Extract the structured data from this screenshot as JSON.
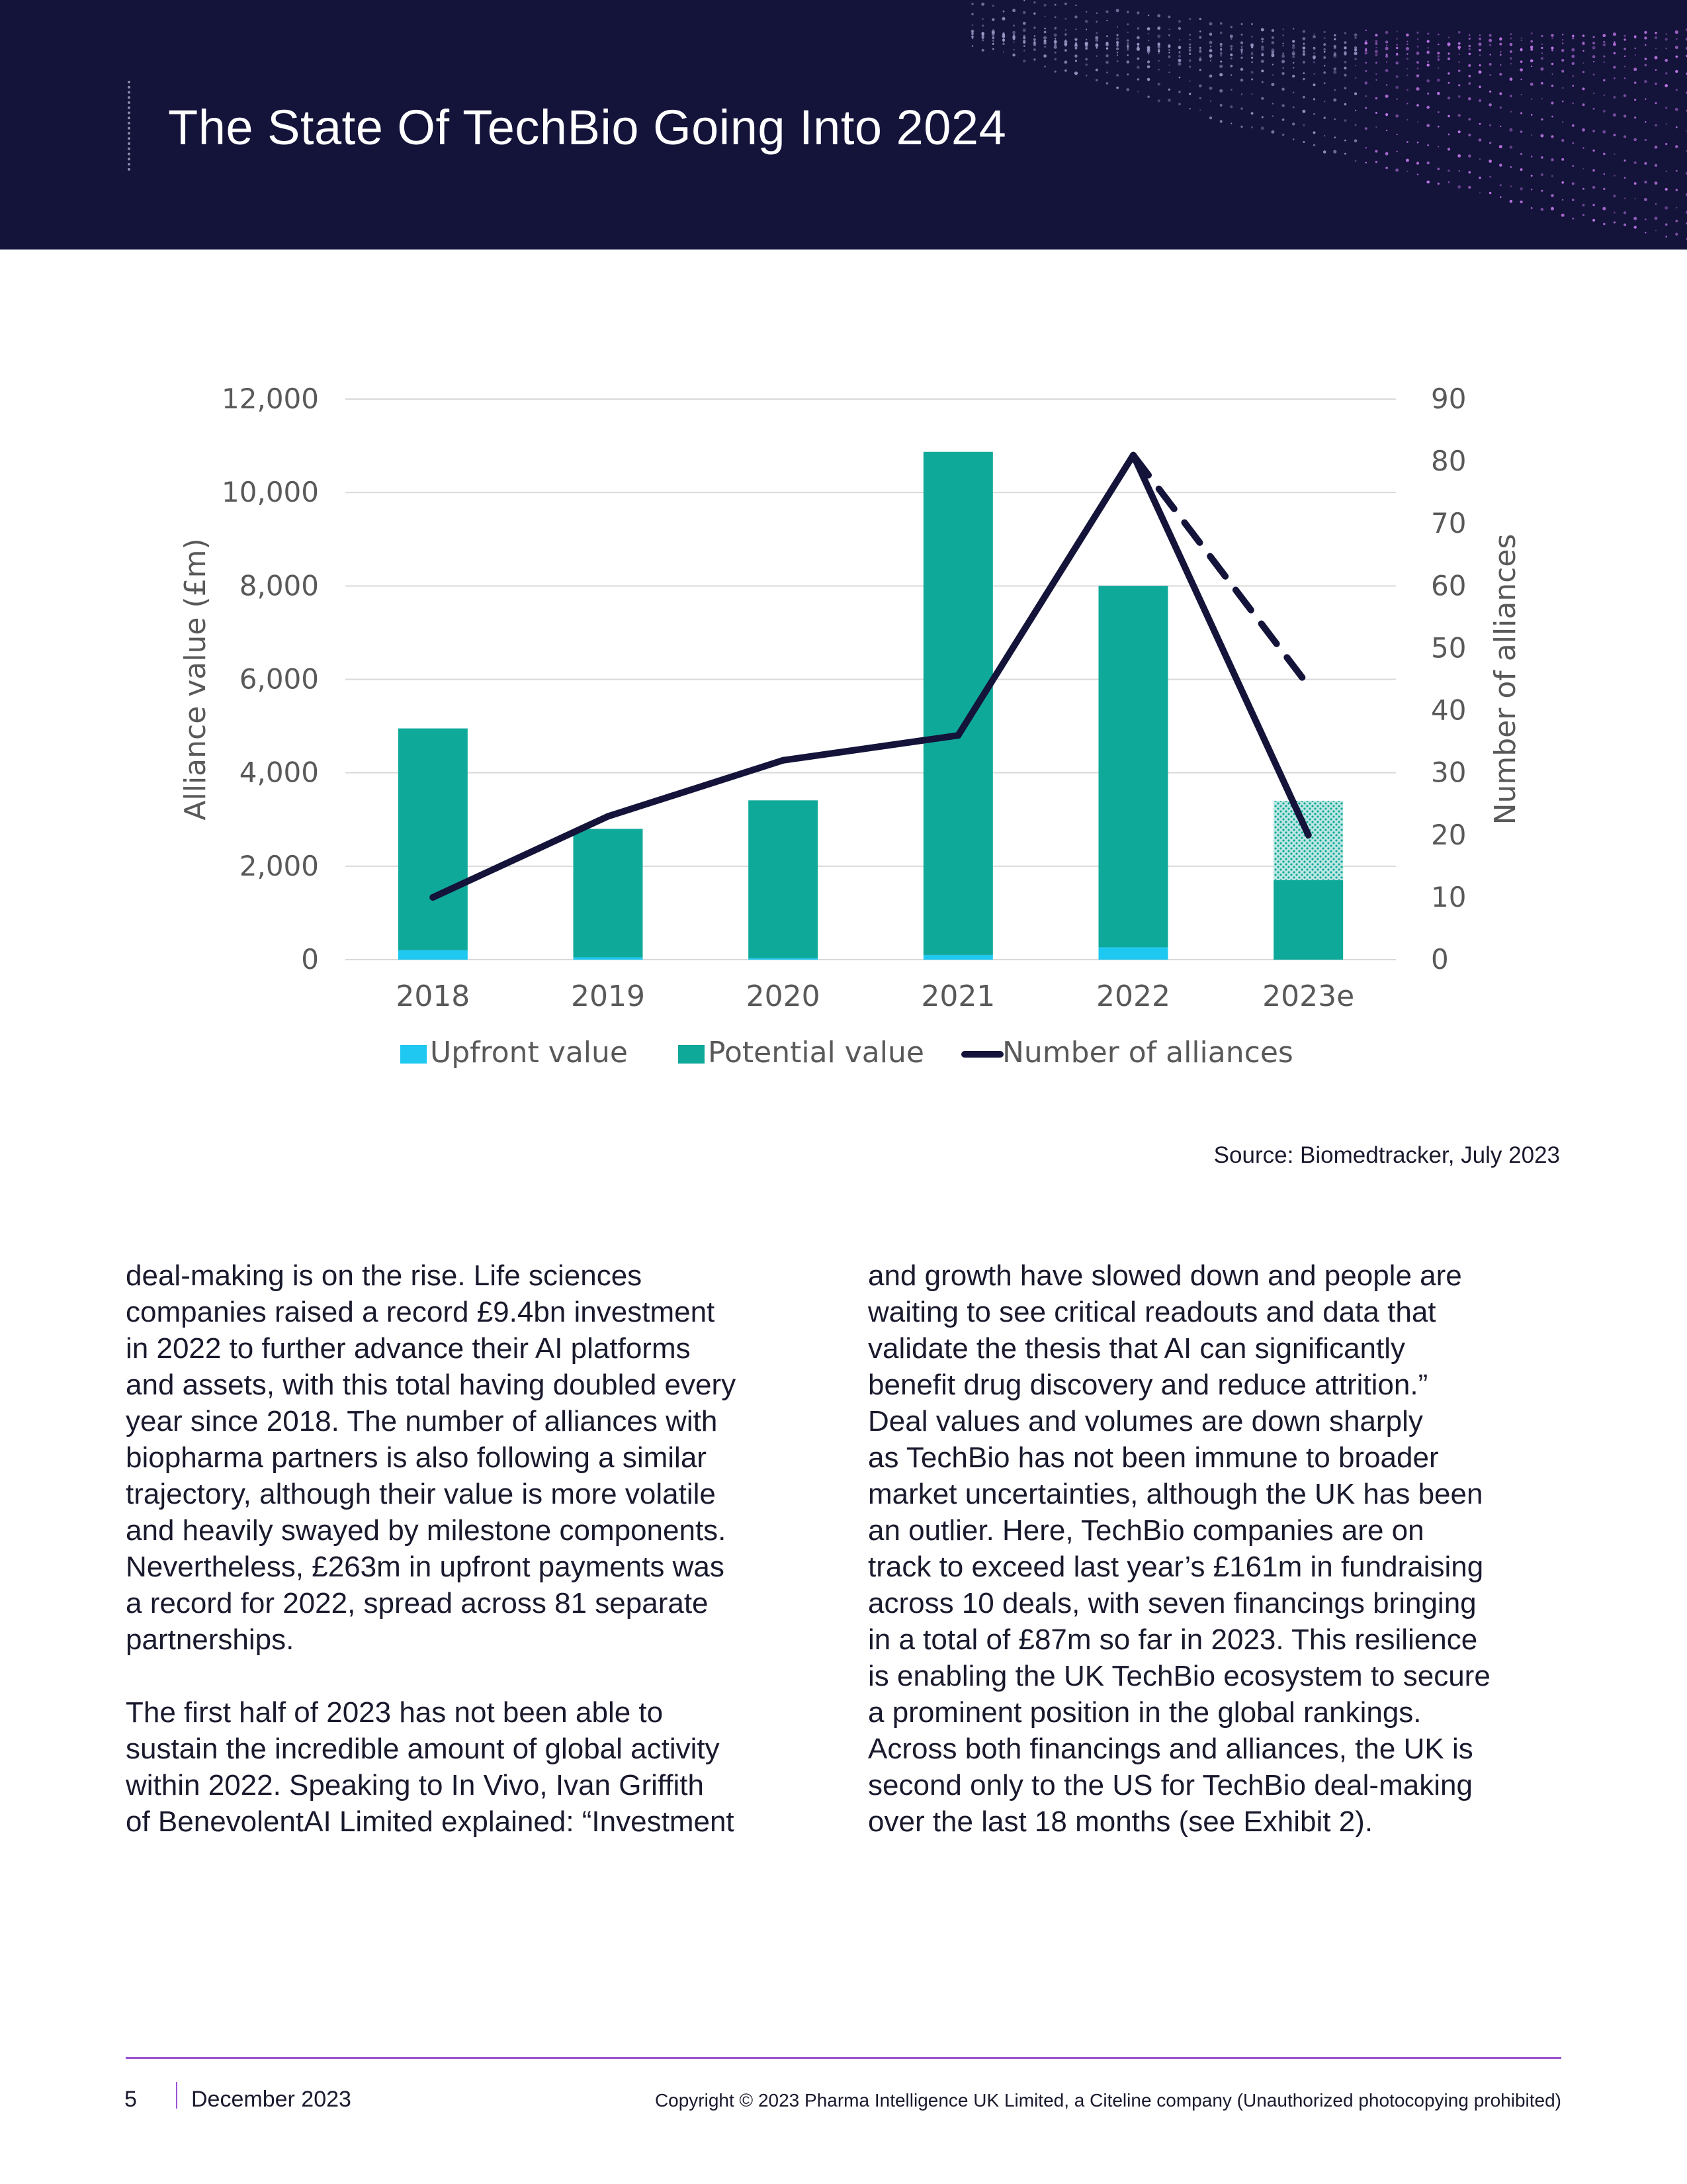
{
  "header": {
    "title": "The State Of TechBio Going Into 2024",
    "background_color": "#14133a"
  },
  "chart_data": {
    "type": "bar",
    "categories": [
      "2018",
      "2019",
      "2020",
      "2021",
      "2022",
      "2023e"
    ],
    "series": [
      {
        "name": "Upfront value",
        "kind": "bar",
        "axis": "left",
        "color": "#1ec8f0",
        "values": [
          200,
          50,
          30,
          100,
          263,
          0
        ]
      },
      {
        "name": "Potential value",
        "kind": "bar",
        "axis": "left",
        "color": "#0fa99a",
        "values": [
          4750,
          2750,
          3380,
          10770,
          7740,
          1700
        ],
        "extra_hatched_2023e": 1700
      },
      {
        "name": "Number of alliances",
        "kind": "line",
        "axis": "right",
        "color": "#14133a",
        "values": [
          10,
          23,
          32,
          36,
          81,
          20
        ],
        "dashed_projection": {
          "from": "2022",
          "to": "2023e",
          "values": [
            81,
            44
          ]
        }
      }
    ],
    "ylabel": "Alliance value (£m)",
    "ylabel_right": "Number of alliances",
    "ylim": [
      0,
      12000
    ],
    "ylim_right": [
      0,
      90
    ],
    "yticks": [
      "0",
      "2,000",
      "4,000",
      "6,000",
      "8,000",
      "10,000",
      "12,000"
    ],
    "yticks_right": [
      "0",
      "10",
      "20",
      "30",
      "40",
      "50",
      "60",
      "70",
      "80",
      "90"
    ],
    "grid": "horizontal",
    "legend": "bottom",
    "legend_labels": [
      "Upfront value",
      "Potential value",
      "Number of alliances"
    ]
  },
  "source": "Source: Biomedtracker, July 2023",
  "body": {
    "left_paragraphs": [
      "deal-making is on the rise. Life sciences\ncompanies raised a record £9.4bn investment\nin 2022 to further advance their AI platforms\nand assets, with this total having doubled every\nyear since 2018. The number of alliances with\nbiopharma partners is also following a similar\ntrajectory, although their value is more volatile\nand heavily swayed by milestone components.\nNevertheless, £263m in upfront payments was\na record for 2022, spread across 81 separate\npartnerships.",
      "The first half of 2023 has not been able to\nsustain the incredible amount of global activity\nwithin 2022. Speaking to In Vivo, Ivan Griffith\nof BenevolentAI Limited explained: “Investment"
    ],
    "right_paragraphs": [
      "and growth have slowed down and people are\nwaiting to see critical readouts and data that\nvalidate the thesis that AI can significantly\nbenefit drug discovery and reduce attrition.”\nDeal values and volumes are down sharply\nas TechBio has not been immune to broader\nmarket uncertainties, although the UK has been\nan outlier. Here, TechBio companies are on\ntrack to exceed last year’s £161m in fundraising\nacross 10 deals, with seven financings bringing\nin a total of £87m so far in 2023. This resilience\nis enabling the UK TechBio ecosystem to secure\na prominent position in the global rankings.\nAcross both financings and alliances, the UK is\nsecond only to the US for TechBio deal-making\nover the last 18 months (see Exhibit 2)."
    ]
  },
  "footer": {
    "page_number": "5",
    "date": "December 2023",
    "copyright": "Copyright © 2023 Pharma Intelligence UK Limited, a Citeline company (Unauthorized photocopying prohibited)",
    "accent_color": "#9b55d6"
  }
}
